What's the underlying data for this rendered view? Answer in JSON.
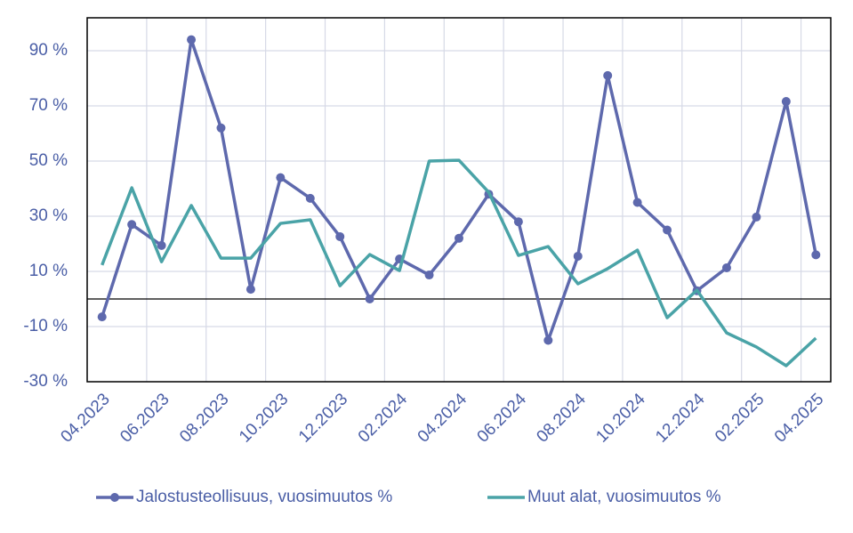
{
  "chart_data": {
    "type": "line",
    "categories": [
      "04.2023",
      null,
      "06.2023",
      null,
      "08.2023",
      null,
      "10.2023",
      null,
      "12.2023",
      null,
      "02.2024",
      null,
      "04.2024",
      null,
      "06.2024",
      null,
      "08.2024",
      null,
      "10.2024",
      null,
      "12.2024",
      null,
      "02.2025",
      null,
      "04.2025"
    ],
    "series": [
      {
        "name": "Jalostusteollisuus, vuosimuutos %",
        "color": "#5e69ad",
        "markers": true,
        "values": [
          -6.5,
          27,
          19.4,
          94,
          62,
          3.5,
          44,
          36.5,
          22.6,
          0,
          14.5,
          8.7,
          22,
          38,
          28,
          -15,
          15.5,
          81,
          35,
          25,
          3,
          11.3,
          29.7,
          71.6,
          16
        ]
      },
      {
        "name": "Muut alat, vuosimuutos %",
        "color": "#4aa3a7",
        "markers": false,
        "values": [
          12.3,
          40.3,
          13.5,
          33.9,
          14.8,
          14.8,
          27.4,
          28.7,
          4.8,
          16.1,
          10.3,
          50,
          50.3,
          38.7,
          15.8,
          19,
          5.5,
          11,
          17.7,
          -6.8,
          3.2,
          -12.3,
          -17.4,
          -24.2,
          -14.2
        ]
      }
    ],
    "ylim": [
      -30,
      100
    ],
    "yticks": [
      {
        "value": -30,
        "label": "-30 %"
      },
      {
        "value": -10,
        "label": "-10 %"
      },
      {
        "value": 10,
        "label": "10 %"
      },
      {
        "value": 30,
        "label": "30 %"
      },
      {
        "value": 50,
        "label": "50 %"
      },
      {
        "value": 70,
        "label": "70 %"
      },
      {
        "value": 90,
        "label": "90 %"
      }
    ],
    "grid": true,
    "legend": "bottom"
  }
}
